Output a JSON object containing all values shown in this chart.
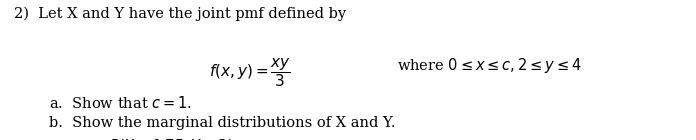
{
  "background_color": "#ffffff",
  "figsize": [
    6.96,
    1.4
  ],
  "dpi": 100,
  "text_color": "#000000",
  "font_size_main": 10.5,
  "font_size_formula": 11,
  "font_size_items": 10.5
}
